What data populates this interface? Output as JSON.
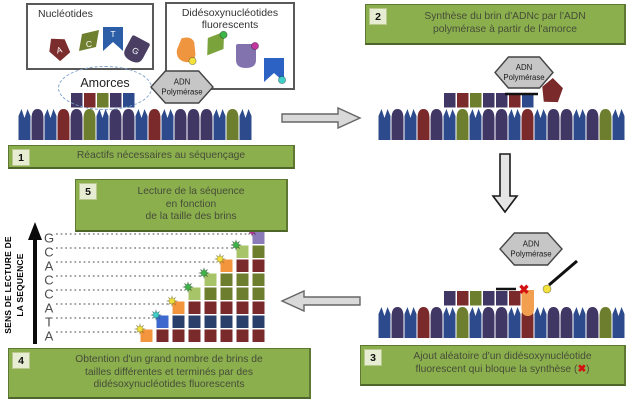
{
  "colors": {
    "banner_bg": "#8caf4e",
    "banner_border": "#5e7733",
    "banner_text": "#454d38",
    "badge_bg": "#e7edd3",
    "box_border": "#595959",
    "arrow_fill": "#d9d9d9",
    "arrow_border": "#666666",
    "down_arrow_fill": "#e5e5e5",
    "down_arrow_border": "#1a1a1a",
    "hex_fill": "#c6c6c6",
    "hex_border": "#444444",
    "amorce_ellipse": "#7fa3cc",
    "dotted_line": "#8a8a8a",
    "letter_color": "#4c4c4c",
    "x_color": "#d41111",
    "block_line": "#111111"
  },
  "boxes": {
    "nucleotides": {
      "title": "Nucléotides",
      "items": [
        {
          "letter": "A",
          "shape": "pentagon",
          "color": "#7b2c2c"
        },
        {
          "letter": "C",
          "shape": "flag",
          "color": "#6f7f30"
        },
        {
          "letter": "T",
          "shape": "crown",
          "color": "#2b5ea7"
        },
        {
          "letter": "G",
          "shape": "round",
          "color": "#4a3f63"
        }
      ]
    },
    "dideoxy": {
      "title_lines": [
        "Didésoxynucléotides",
        "fluorescents"
      ],
      "items": [
        {
          "shape": "leaf",
          "color": "#f0953f",
          "dot": "#f3e23c",
          "dot_pos": "br"
        },
        {
          "shape": "flag",
          "color": "#7aa33c",
          "dot": "#3eb549",
          "dot_pos": "tr"
        },
        {
          "shape": "round",
          "color": "#8273ae",
          "dot": "#c2379f",
          "dot_pos": "tr"
        },
        {
          "shape": "crown",
          "color": "#2b62c4",
          "dot": "#3ed0c9",
          "dot_pos": "br"
        }
      ]
    }
  },
  "labels": {
    "amorces": "Amorces",
    "polymerase_lines": [
      "ADN",
      "Polymérase"
    ],
    "read_direction_lines": [
      "SENS DE LECTURE DE",
      "LA SEQUENCE"
    ]
  },
  "steps": {
    "s1": {
      "num": "1",
      "text": "Réactifs nécessaires au séquençage"
    },
    "s2": {
      "num": "2",
      "lines": [
        "Synthèse du brin d'ADNc par l'ADN",
        "polymérase à partir de l'amorce"
      ]
    },
    "s3": {
      "num": "3",
      "line1": "Ajout aléatoire d'un didésoxynucléotide",
      "line2_before": "fluorescent qui bloque la synthèse (",
      "x_symbol": "✖",
      "line2_after": ")"
    },
    "s4": {
      "num": "4",
      "lines": [
        "Obtention d'un grand nombre de brins de",
        "tailles différentes et terminés par des",
        "didésoxynucléotides fluorescents"
      ]
    },
    "s5": {
      "num": "5",
      "lines": [
        "Lecture de la séquence",
        "en fonction",
        "de la taille des brins"
      ]
    }
  },
  "chart_data": {
    "type": "bar",
    "stacked": true,
    "title": "Lecture de la séquence en fonction de la taille des brins",
    "bar_count": 8,
    "bar_heights_nucleotides": [
      1,
      2,
      3,
      4,
      5,
      6,
      7,
      8
    ],
    "sequence_bottom_to_top": [
      "A",
      "T",
      "A",
      "C",
      "C",
      "A",
      "C",
      "G"
    ],
    "read_letters_top_to_bottom": [
      "G",
      "C",
      "A",
      "C",
      "C",
      "A",
      "T",
      "A"
    ],
    "base_colors": {
      "A": "#7a2a2b",
      "T": "#2b3f6b",
      "C": "#6e7e2f",
      "G": "#413764"
    },
    "terminator_colors": {
      "A": "#f2953c",
      "T": "#3d68ce",
      "C": "#a8c468",
      "G": "#8b7bb8"
    },
    "terminator_dot_colors": {
      "A": "#f3e23c",
      "T": "#3ed0c9",
      "C": "#3eb549",
      "G": "#c2379f"
    },
    "legend_position": "none",
    "grid": false
  },
  "strands": {
    "unit_colors": {
      "blue": "#2c4a8c",
      "purple": "#413764",
      "red": "#7a2a2b",
      "olive": "#6e7e2f"
    },
    "template1": [
      "v:blue",
      "d:purple",
      "v:blue",
      "d:red",
      "d:purple",
      "d:olive",
      "v:blue",
      "d:purple",
      "d:purple",
      "v:blue",
      "d:red",
      "v:blue",
      "d:purple",
      "d:purple",
      "d:purple",
      "v:blue",
      "d:olive",
      "v:blue"
    ],
    "primer1": {
      "start": 4,
      "squares": [
        "purple",
        "red",
        "olive",
        "purple",
        "blue"
      ]
    },
    "template2": [
      "v:blue",
      "d:purple",
      "v:blue",
      "d:red",
      "d:purple",
      "v:blue",
      "d:olive",
      "v:blue",
      "d:purple",
      "d:purple",
      "v:blue",
      "d:red",
      "v:blue",
      "d:purple",
      "d:purple",
      "v:blue",
      "d:purple",
      "d:olive",
      "v:blue"
    ],
    "synth2": {
      "start": 5,
      "squares": [
        "purple",
        "red",
        "olive",
        "purple",
        "purple",
        "red",
        "blue"
      ]
    },
    "template3": [
      "v:blue",
      "d:purple",
      "v:blue",
      "d:red",
      "d:purple",
      "v:blue",
      "d:olive",
      "v:blue",
      "d:purple",
      "d:purple",
      "v:blue",
      "d:red",
      "v:blue",
      "d:purple",
      "d:purple",
      "v:blue",
      "d:purple",
      "d:olive",
      "v:blue"
    ],
    "synth3": {
      "start": 5,
      "squares": [
        "purple",
        "red",
        "olive",
        "purple",
        "purple",
        "red"
      ],
      "terminator": {
        "base": "A",
        "color": "#f2a04f",
        "dot": "#f3e23c",
        "index": 11
      }
    }
  }
}
